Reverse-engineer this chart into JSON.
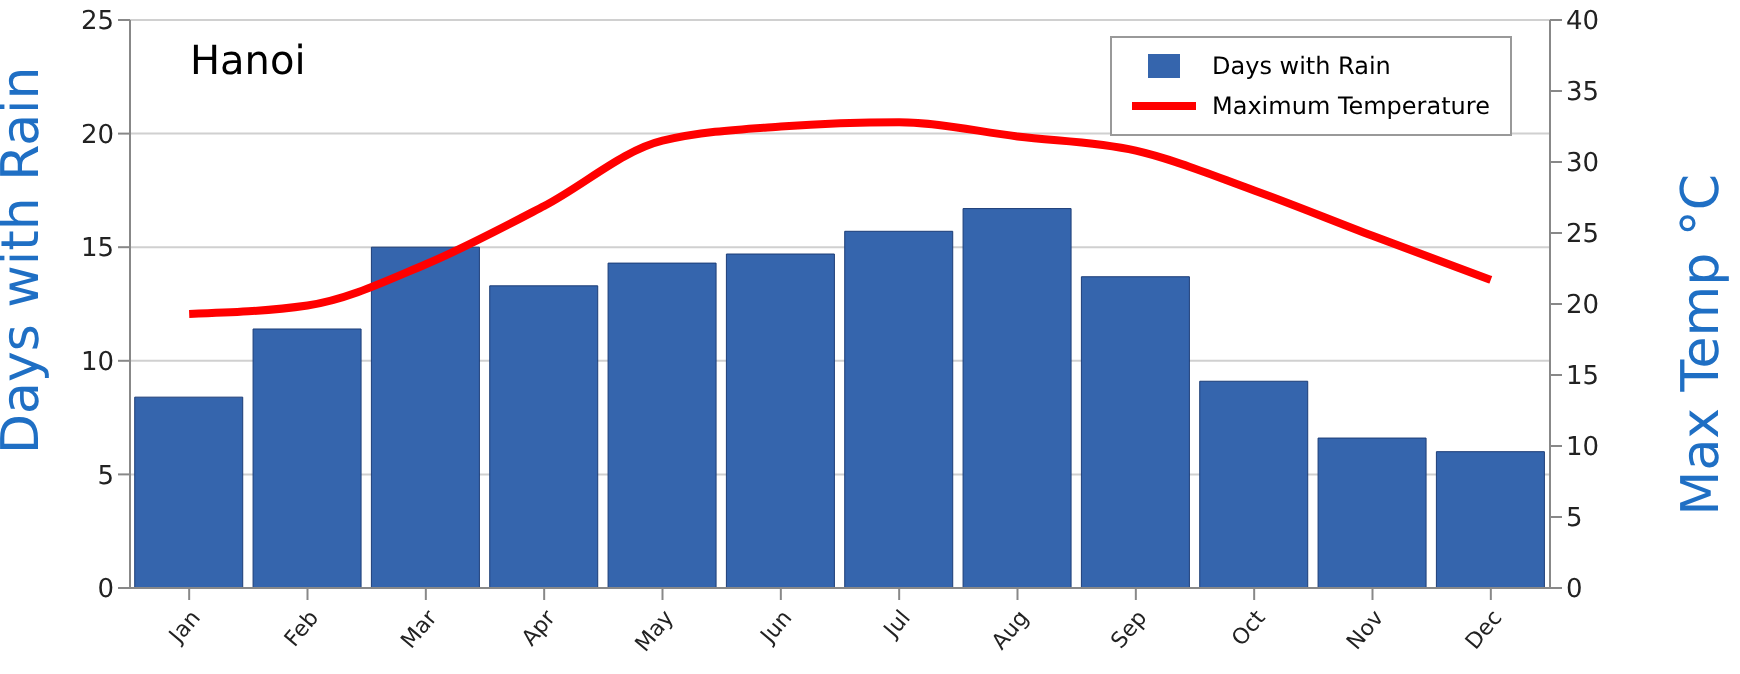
{
  "chart_data": {
    "type": "bar",
    "title": "Hanoi",
    "ylabel": "Days with Rain",
    "y2label": "Max Temp °C",
    "categories": [
      "Jan",
      "Feb",
      "Mar",
      "Apr",
      "May",
      "Jun",
      "Jul",
      "Aug",
      "Sep",
      "Oct",
      "Nov",
      "Dec"
    ],
    "series": [
      {
        "name": "Days with Rain",
        "color": "#3565ad",
        "values": [
          8.4,
          11.4,
          15.0,
          13.3,
          14.3,
          14.7,
          15.7,
          16.7,
          13.7,
          9.1,
          6.6,
          6.0
        ]
      },
      {
        "name": "Maximum Temperature",
        "type": "line",
        "axis": "y2",
        "color": "#ff0000",
        "values": [
          19.3,
          19.9,
          22.8,
          26.9,
          31.5,
          32.5,
          32.8,
          31.8,
          30.8,
          28.0,
          24.8,
          21.7
        ]
      }
    ],
    "ylim": [
      0,
      25
    ],
    "yticks": [
      0,
      5,
      10,
      15,
      20,
      25
    ],
    "y2lim": [
      0,
      40
    ],
    "y2ticks": [
      0,
      5,
      10,
      15,
      20,
      25,
      30,
      35,
      40
    ],
    "grid": "y",
    "legend": "top right",
    "marker": "none",
    "line_style": "solid"
  }
}
